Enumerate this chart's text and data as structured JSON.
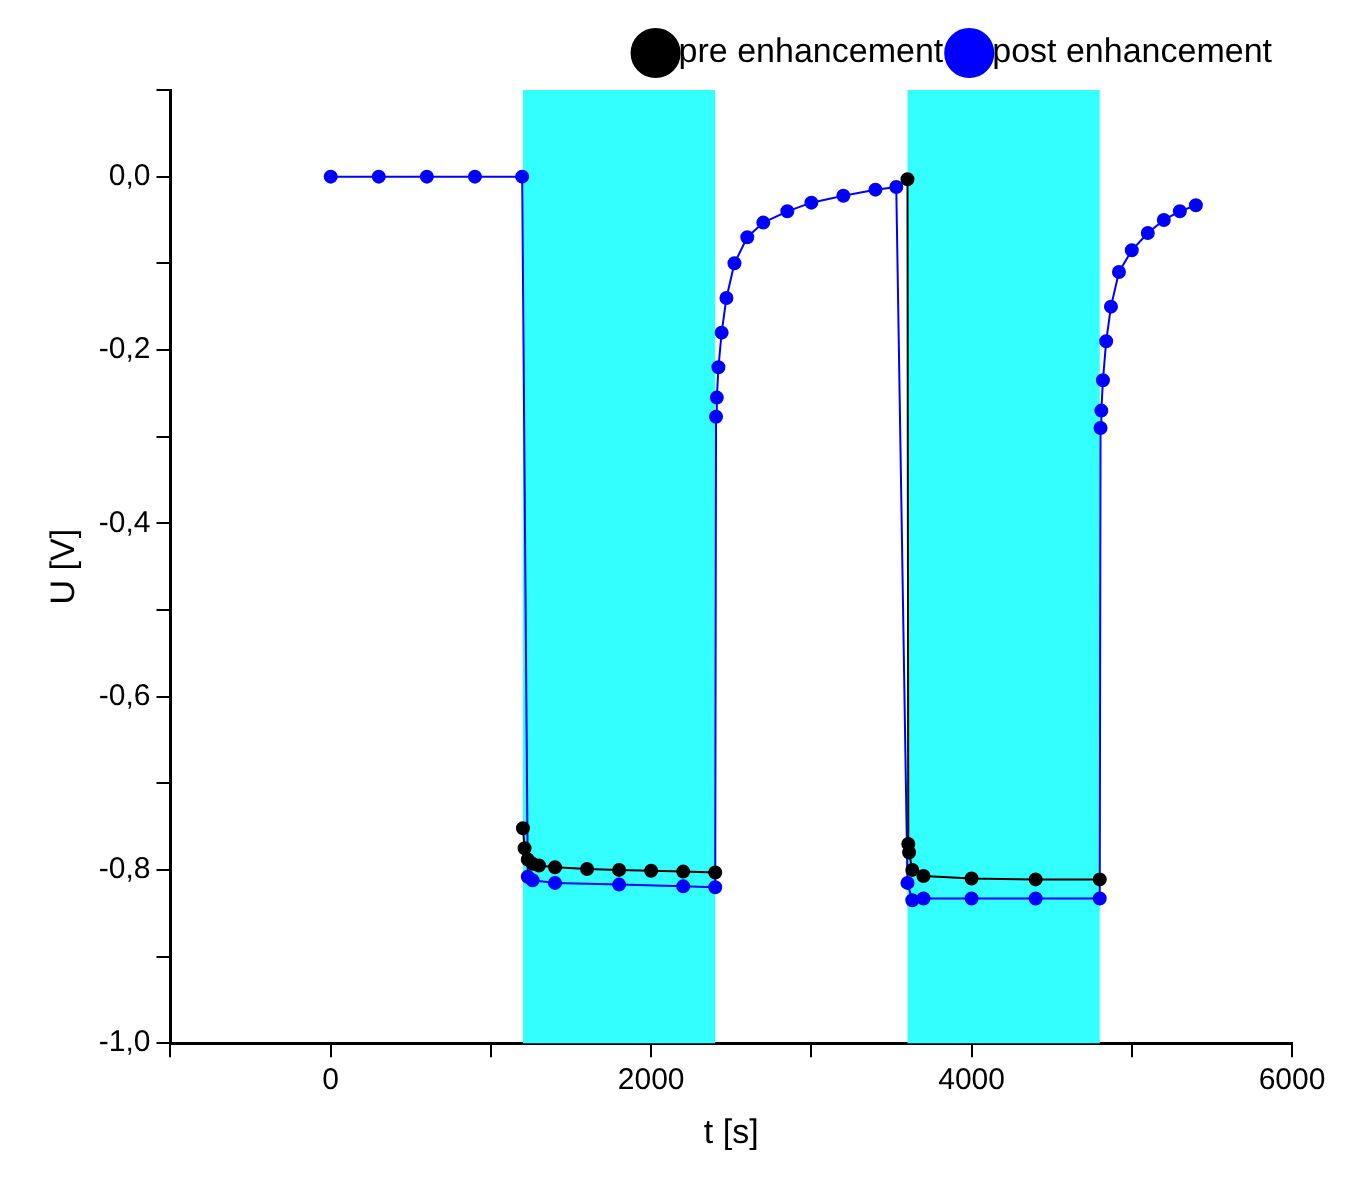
{
  "chart_data": {
    "type": "line",
    "xlabel": "t [s]",
    "ylabel": "U [V]",
    "xlim": [
      -1000,
      6000
    ],
    "xticks": [
      {
        "value": -1000,
        "label": null
      },
      0,
      {
        "value": 1000,
        "label": null
      },
      2000,
      {
        "value": 3000,
        "label": null
      },
      4000,
      {
        "value": 5000,
        "label": null
      },
      6000
    ],
    "ylim": [
      -1.0,
      0.1
    ],
    "yticks": [
      {
        "value": -1.0,
        "label": "-1,0"
      },
      {
        "value": -0.9,
        "label": null
      },
      {
        "value": -0.8,
        "label": "-0,8"
      },
      {
        "value": -0.7,
        "label": null
      },
      {
        "value": -0.6,
        "label": "-0,6"
      },
      {
        "value": -0.5,
        "label": null
      },
      {
        "value": -0.4,
        "label": "-0,4"
      },
      {
        "value": -0.3,
        "label": null
      },
      {
        "value": -0.2,
        "label": "-0,2"
      },
      {
        "value": -0.1,
        "label": null
      },
      {
        "value": 0.0,
        "label": "0,0"
      },
      {
        "value": 0.1,
        "label": null
      }
    ],
    "grid": false,
    "legend": "top right",
    "marker": "circle",
    "line_style": "solid",
    "bands": [
      {
        "axis": "x",
        "from": 1200,
        "to": 2400,
        "color": "#33ffff"
      },
      {
        "axis": "x",
        "from": 3600,
        "to": 4800,
        "color": "#33ffff"
      }
    ],
    "series": [
      {
        "name": "pre enhancement",
        "color": "#000000",
        "x": [
          1200,
          1210,
          1230,
          1260,
          1300,
          1400,
          1600,
          1800,
          2000,
          2200,
          2400,
          3000,
          3600,
          3605,
          3610,
          3630,
          3700,
          4000,
          4400,
          4800
        ],
        "values": [
          -0.752,
          -0.775,
          -0.788,
          -0.793,
          -0.795,
          -0.797,
          -0.799,
          -0.8,
          -0.801,
          -0.802,
          -0.803,
          null,
          -0.003,
          -0.77,
          -0.78,
          -0.8,
          -0.807,
          -0.81,
          -0.811,
          -0.811
        ]
      },
      {
        "name": "post enhancement",
        "color": "#0000ff",
        "x": [
          0,
          300,
          600,
          900,
          1195,
          1230,
          1260,
          1400,
          1800,
          2200,
          2400,
          2405,
          2410,
          2420,
          2440,
          2470,
          2520,
          2600,
          2700,
          2850,
          3000,
          3200,
          3400,
          3530,
          3600,
          3630,
          3700,
          4000,
          4400,
          4800,
          4805,
          4810,
          4820,
          4840,
          4870,
          4920,
          5000,
          5100,
          5200,
          5300,
          5400
        ],
        "values": [
          0,
          0,
          0,
          0,
          0,
          -0.808,
          -0.812,
          -0.815,
          -0.817,
          -0.819,
          -0.82,
          -0.277,
          -0.255,
          -0.22,
          -0.18,
          -0.14,
          -0.1,
          -0.07,
          -0.053,
          -0.04,
          -0.03,
          -0.022,
          -0.015,
          -0.012,
          -0.815,
          -0.835,
          -0.833,
          -0.833,
          -0.833,
          -0.833,
          -0.29,
          -0.27,
          -0.235,
          -0.19,
          -0.15,
          -0.11,
          -0.085,
          -0.065,
          -0.05,
          -0.04,
          -0.033
        ]
      }
    ]
  }
}
